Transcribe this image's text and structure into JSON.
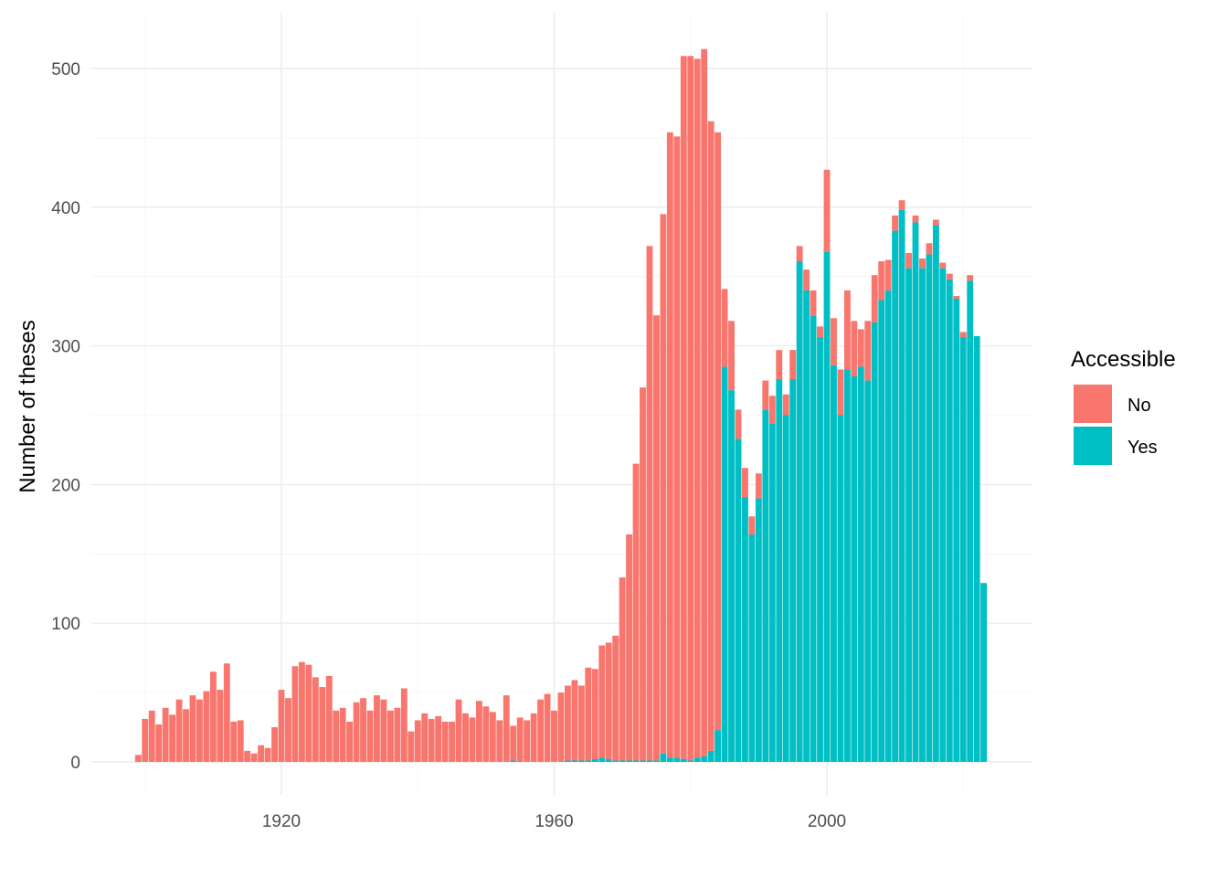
{
  "chart_data": {
    "type": "bar",
    "stacked": true,
    "title": "",
    "xlabel": "",
    "ylabel": "Number of theses",
    "xlim": [
      1893,
      2028
    ],
    "ylim": [
      0,
      525
    ],
    "x_ticks": [
      1920,
      1960,
      2000
    ],
    "y_ticks": [
      0,
      100,
      200,
      300,
      400,
      500
    ],
    "grid": true,
    "legend": {
      "title": "Accessible",
      "position": "right"
    },
    "colors": {
      "No": "#F8766D",
      "Yes": "#00BFC4"
    },
    "x": [
      1899,
      1900,
      1901,
      1902,
      1903,
      1904,
      1905,
      1906,
      1907,
      1908,
      1909,
      1910,
      1911,
      1912,
      1913,
      1914,
      1915,
      1916,
      1917,
      1918,
      1919,
      1920,
      1921,
      1922,
      1923,
      1924,
      1925,
      1926,
      1927,
      1928,
      1929,
      1930,
      1931,
      1932,
      1933,
      1934,
      1935,
      1936,
      1937,
      1938,
      1939,
      1940,
      1941,
      1942,
      1943,
      1944,
      1945,
      1946,
      1947,
      1948,
      1949,
      1950,
      1951,
      1952,
      1953,
      1954,
      1955,
      1956,
      1957,
      1958,
      1959,
      1960,
      1961,
      1962,
      1963,
      1964,
      1965,
      1966,
      1967,
      1968,
      1969,
      1970,
      1971,
      1972,
      1973,
      1974,
      1975,
      1976,
      1977,
      1978,
      1979,
      1980,
      1981,
      1982,
      1983,
      1984,
      1985,
      1986,
      1987,
      1988,
      1989,
      1990,
      1991,
      1992,
      1993,
      1994,
      1995,
      1996,
      1997,
      1998,
      1999,
      2000,
      2001,
      2002,
      2003,
      2004,
      2005,
      2006,
      2007,
      2008,
      2009,
      2010,
      2011,
      2012,
      2013,
      2014,
      2015,
      2016,
      2017,
      2018,
      2019,
      2020,
      2021,
      2022,
      2023
    ],
    "series": [
      {
        "name": "Yes",
        "values": [
          0,
          0,
          0,
          0,
          0,
          0,
          0,
          0,
          0,
          0,
          0,
          0,
          0,
          0,
          0,
          0,
          0,
          0,
          0,
          0,
          0,
          0,
          0,
          0,
          0,
          0,
          0,
          0,
          0,
          0,
          0,
          0,
          0,
          0,
          0,
          0,
          0,
          0,
          0,
          0,
          0,
          0,
          0,
          0,
          0,
          0,
          0,
          0,
          0,
          0,
          0,
          0,
          0,
          0,
          0,
          1,
          0,
          0,
          0,
          0,
          0,
          0,
          0,
          1,
          1,
          1,
          1,
          2,
          3,
          2,
          1,
          1,
          1,
          1,
          1,
          1,
          1,
          6,
          3,
          3,
          2,
          1,
          3,
          4,
          8,
          23,
          285,
          268,
          233,
          191,
          164,
          190,
          254,
          244,
          276,
          250,
          276,
          361,
          340,
          322,
          306,
          368,
          286,
          250,
          283,
          278,
          285,
          275,
          317,
          333,
          340,
          383,
          398,
          356,
          389,
          356,
          366,
          387,
          356,
          348,
          334,
          306,
          347,
          307,
          129
        ]
      },
      {
        "name": "No",
        "values": [
          5,
          31,
          37,
          27,
          39,
          34,
          45,
          38,
          48,
          45,
          51,
          65,
          52,
          71,
          29,
          30,
          8,
          6,
          12,
          10,
          25,
          52,
          46,
          69,
          72,
          70,
          61,
          54,
          62,
          37,
          39,
          29,
          43,
          46,
          37,
          48,
          45,
          37,
          39,
          53,
          22,
          30,
          35,
          31,
          33,
          29,
          29,
          45,
          35,
          32,
          44,
          40,
          36,
          30,
          48,
          25,
          32,
          30,
          35,
          45,
          49,
          37,
          50,
          54,
          58,
          54,
          67,
          65,
          81,
          84,
          90,
          132,
          163,
          214,
          269,
          371,
          321,
          389,
          451,
          448,
          507,
          508,
          504,
          510,
          454,
          431,
          56,
          50,
          21,
          21,
          13,
          18,
          21,
          20,
          21,
          15,
          21,
          11,
          15,
          18,
          8,
          59,
          34,
          33,
          57,
          40,
          27,
          43,
          34,
          28,
          22,
          11,
          7,
          11,
          5,
          7,
          8,
          4,
          4,
          4,
          2,
          4,
          4,
          0,
          0
        ]
      }
    ]
  }
}
